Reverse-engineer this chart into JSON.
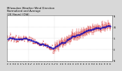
{
  "title": "Milwaukee Weather Wind Direction\nNormalized and Average\n(24 Hours) (Old)",
  "bg_color": "#d8d8d8",
  "plot_bg": "#ffffff",
  "y_min": 0,
  "y_max": 360,
  "yticks": [
    0,
    90,
    180,
    270,
    360
  ],
  "ytick_labels": [
    "N",
    "E",
    "S",
    "W",
    "N"
  ],
  "red_color": "#cc0000",
  "blue_color": "#0000bb",
  "grid_color": "#999999",
  "title_fontsize": 2.8,
  "tick_fontsize": 2.2,
  "n_points": 200,
  "seed": 17
}
